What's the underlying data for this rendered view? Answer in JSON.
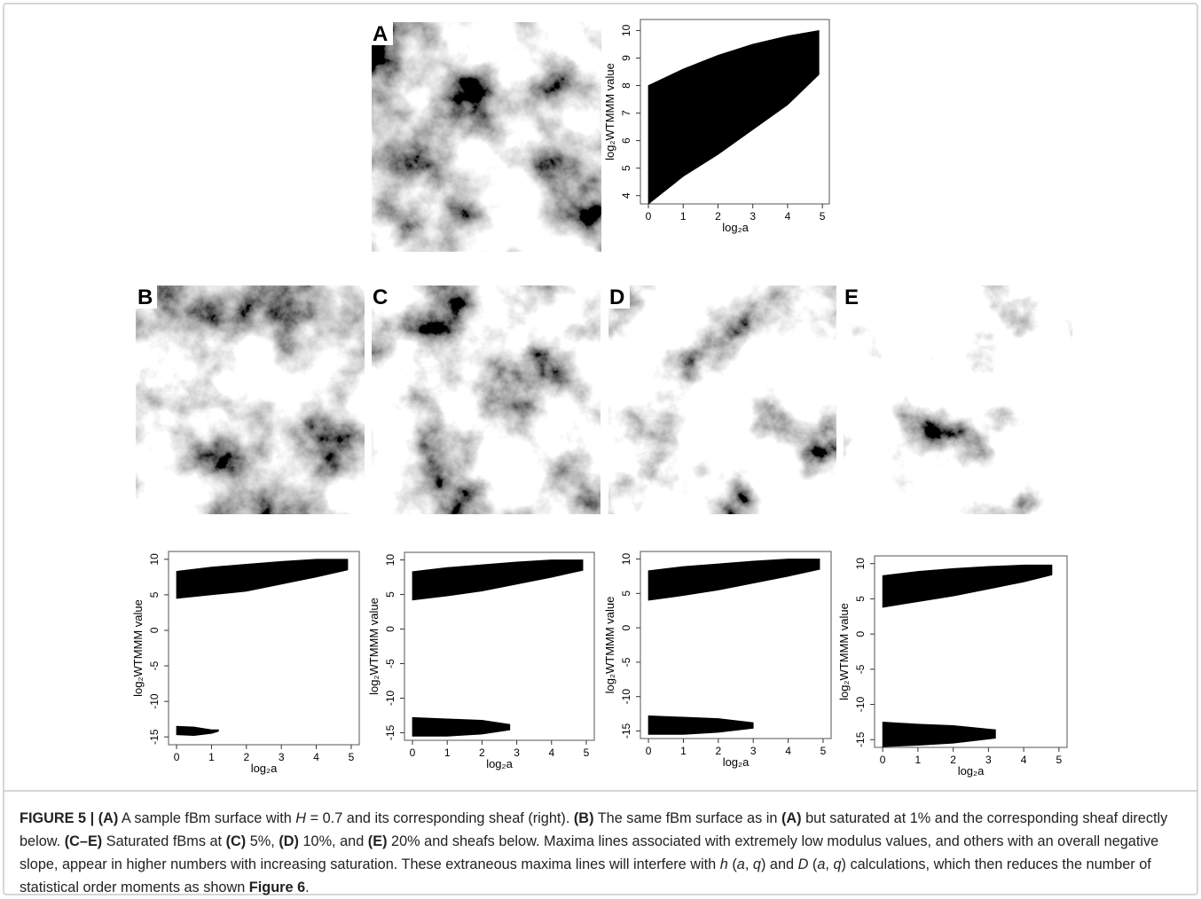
{
  "panel_labels": [
    "A",
    "B",
    "C",
    "D",
    "E"
  ],
  "chart_data": [
    {
      "type": "area",
      "x_label": "log₂a",
      "y_label": "log₂WTMMM value",
      "xlim": [
        -0.23,
        5.2
      ],
      "ylim": [
        3.7,
        10.4
      ],
      "xticks": [
        0,
        1,
        2,
        3,
        4,
        5
      ],
      "yticks": [
        4,
        5,
        6,
        7,
        8,
        9,
        10
      ],
      "series": [
        {
          "color": "#000000",
          "x": [
            0,
            1,
            2,
            3,
            4,
            4.9
          ],
          "values": [
            8,
            8.6,
            9.1,
            9.5,
            9.8,
            10
          ],
          "lower": [
            3.7,
            4.7,
            5.5,
            6.4,
            7.3,
            8.4
          ]
        }
      ]
    },
    {
      "type": "area",
      "x_label": "log₂a",
      "y_label": "log₂WTMMM value",
      "xlim": [
        -0.23,
        5.23
      ],
      "ylim": [
        -16.1,
        11.1
      ],
      "xticks": [
        0,
        1,
        2,
        3,
        4,
        5
      ],
      "yticks": [
        -15,
        -10,
        -5,
        0,
        5,
        10
      ],
      "series": [
        {
          "color": "#000000",
          "x": [
            0,
            1,
            2,
            3,
            4,
            4.9
          ],
          "values": [
            8.3,
            8.9,
            9.3,
            9.7,
            10,
            10
          ],
          "lower": [
            4.5,
            5,
            5.5,
            6.5,
            7.5,
            8.5
          ]
        },
        {
          "color": "#000000",
          "x": [
            0,
            0.5,
            1,
            1.2
          ],
          "values": [
            -13.5,
            -13.6,
            -14,
            -14
          ],
          "lower": [
            -14.7,
            -14.8,
            -14.5,
            -14.2
          ]
        }
      ]
    },
    {
      "type": "area",
      "x_label": "log₂a",
      "y_label": "log₂WTMMM value",
      "xlim": [
        -0.23,
        5.23
      ],
      "ylim": [
        -16.1,
        11.1
      ],
      "xticks": [
        0,
        1,
        2,
        3,
        4,
        5
      ],
      "yticks": [
        -15,
        -10,
        -5,
        0,
        5,
        10
      ],
      "series": [
        {
          "color": "#000000",
          "x": [
            0,
            1,
            2,
            3,
            4,
            4.9
          ],
          "values": [
            8.3,
            8.9,
            9.3,
            9.7,
            10,
            10
          ],
          "lower": [
            4.2,
            4.8,
            5.5,
            6.5,
            7.5,
            8.5
          ]
        },
        {
          "color": "#000000",
          "x": [
            0,
            1,
            2,
            2.8
          ],
          "values": [
            -12.8,
            -13,
            -13.2,
            -13.8
          ],
          "lower": [
            -15.5,
            -15.5,
            -15.2,
            -14.6
          ]
        }
      ]
    },
    {
      "type": "area",
      "x_label": "log₂a",
      "y_label": "log₂WTMMM value",
      "xlim": [
        -0.23,
        5.23
      ],
      "ylim": [
        -16.1,
        11.1
      ],
      "xticks": [
        0,
        1,
        2,
        3,
        4,
        5
      ],
      "yticks": [
        -15,
        -10,
        -5,
        0,
        5,
        10
      ],
      "series": [
        {
          "color": "#000000",
          "x": [
            0,
            1,
            2,
            3,
            4,
            4.9
          ],
          "values": [
            8.3,
            8.9,
            9.3,
            9.7,
            10,
            10
          ],
          "lower": [
            4,
            4.7,
            5.5,
            6.5,
            7.5,
            8.5
          ]
        },
        {
          "color": "#000000",
          "x": [
            0,
            1,
            2,
            3
          ],
          "values": [
            -12.8,
            -13,
            -13.2,
            -13.8
          ],
          "lower": [
            -15.5,
            -15.5,
            -15.2,
            -14.6
          ]
        }
      ]
    },
    {
      "type": "area",
      "x_label": "log₂a",
      "y_label": "log₂WTMMM value",
      "xlim": [
        -0.23,
        5.23
      ],
      "ylim": [
        -16.1,
        11.1
      ],
      "xticks": [
        0,
        1,
        2,
        3,
        4,
        5
      ],
      "yticks": [
        -15,
        -10,
        -5,
        0,
        5,
        10
      ],
      "series": [
        {
          "color": "#000000",
          "x": [
            0,
            1,
            2,
            3,
            4,
            4.8
          ],
          "values": [
            8.3,
            8.9,
            9.3,
            9.6,
            9.8,
            9.8
          ],
          "lower": [
            3.8,
            4.6,
            5.4,
            6.4,
            7.4,
            8.4
          ]
        },
        {
          "color": "#000000",
          "x": [
            0,
            1,
            2,
            3.2
          ],
          "values": [
            -12.5,
            -12.8,
            -13,
            -13.6
          ],
          "lower": [
            -16,
            -15.8,
            -15.5,
            -14.8
          ]
        }
      ]
    }
  ],
  "caption": [
    "FIGURE 5 | ",
    "(A)",
    " A sample fBm surface with ",
    "H",
    " = 0.7 and its corresponding sheaf (right). ",
    "(B)",
    " The same fBm surface as in ",
    "(A)",
    " but saturated at 1% and the corresponding sheaf directly below. ",
    "(C–E)",
    " Saturated fBms at ",
    "(C)",
    " 5%, ",
    "(D)",
    " 10%, and ",
    "(E)",
    " 20% and sheafs below. Maxima lines associated with extremely low modulus values, and others with an overall negative slope, appear in higher numbers with increasing saturation. These extraneous maxima lines will interfere with ",
    "h",
    " (",
    "a",
    ", ",
    "q",
    ") and ",
    "D",
    " (",
    "a",
    ", ",
    "q",
    ") calculations, which then reduces the number of statistical order moments as shown ",
    "Figure 6",
    "."
  ]
}
